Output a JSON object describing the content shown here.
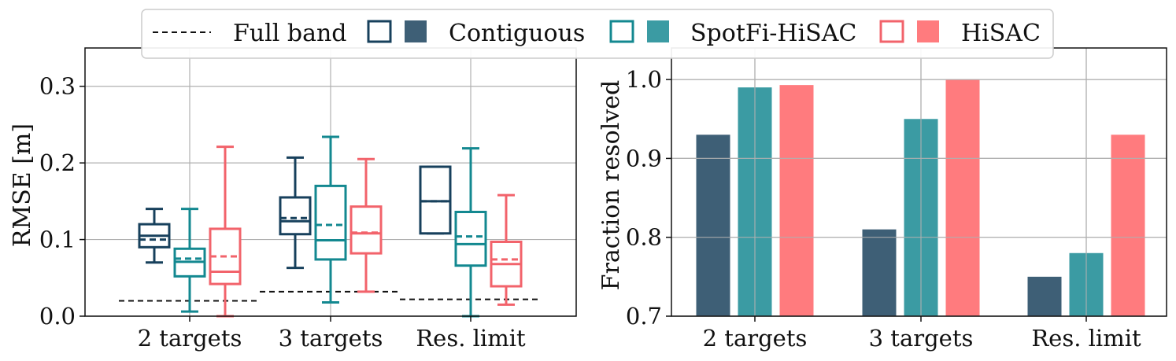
{
  "colors": {
    "contiguous": "#17405c",
    "spotfi": "#138890",
    "hisac": "#f2636b",
    "contiguous_fill": "#3e5f76",
    "spotfi_fill": "#3b9ba3",
    "hisac_fill": "#ff7b7e",
    "grid": "#b0b0b0"
  },
  "legend": {
    "full_band": "Full band",
    "contiguous": "Contiguous",
    "spotfi": "SpotFi-HiSAC",
    "hisac": "HiSAC"
  },
  "chart_data": [
    {
      "type": "box",
      "ylabel": "RMSE [m]",
      "ylim": [
        0.0,
        0.35
      ],
      "yticks": [
        "0.0",
        "0.1",
        "0.2",
        "0.3"
      ],
      "ytick_values": [
        0.0,
        0.1,
        0.2,
        0.3
      ],
      "categories": [
        "2 targets",
        "3 targets",
        "Res. limit"
      ],
      "grid": true,
      "series": [
        {
          "name": "Contiguous",
          "color_key": "contiguous",
          "boxes": [
            {
              "whislo": 0.07,
              "q1": 0.09,
              "med": 0.105,
              "mean": 0.1,
              "q3": 0.12,
              "whishi": 0.14
            },
            {
              "whislo": 0.063,
              "q1": 0.107,
              "med": 0.124,
              "mean": 0.128,
              "q3": 0.155,
              "whishi": 0.207
            },
            {
              "whislo": 0.108,
              "q1": 0.108,
              "med": 0.15,
              "mean": 0.15,
              "q3": 0.195,
              "whishi": 0.195
            }
          ]
        },
        {
          "name": "SpotFi-HiSAC",
          "color_key": "spotfi",
          "boxes": [
            {
              "whislo": 0.006,
              "q1": 0.052,
              "med": 0.071,
              "mean": 0.075,
              "q3": 0.088,
              "whishi": 0.14
            },
            {
              "whislo": 0.018,
              "q1": 0.074,
              "med": 0.099,
              "mean": 0.119,
              "q3": 0.17,
              "whishi": 0.234
            },
            {
              "whislo": 0.0,
              "q1": 0.066,
              "med": 0.094,
              "mean": 0.104,
              "q3": 0.136,
              "whishi": 0.219
            }
          ]
        },
        {
          "name": "HiSAC",
          "color_key": "hisac",
          "boxes": [
            {
              "whislo": 0.0,
              "q1": 0.042,
              "med": 0.058,
              "mean": 0.078,
              "q3": 0.114,
              "whishi": 0.221
            },
            {
              "whislo": 0.032,
              "q1": 0.082,
              "med": 0.108,
              "mean": 0.109,
              "q3": 0.143,
              "whishi": 0.205
            },
            {
              "whislo": 0.015,
              "q1": 0.039,
              "med": 0.068,
              "mean": 0.074,
              "q3": 0.097,
              "whishi": 0.158
            }
          ]
        }
      ],
      "full_band": [
        0.02,
        0.032,
        0.022
      ]
    },
    {
      "type": "bar",
      "ylabel": "Fraction resolved",
      "ylim": [
        0.7,
        1.04
      ],
      "yticks": [
        "0.7",
        "0.8",
        "0.9",
        "1.0"
      ],
      "ytick_values": [
        0.7,
        0.8,
        0.9,
        1.0
      ],
      "categories": [
        "2 targets",
        "3 targets",
        "Res. limit"
      ],
      "grid": true,
      "series": [
        {
          "name": "Contiguous",
          "color_key": "contiguous_fill",
          "values": [
            0.93,
            0.81,
            0.75
          ]
        },
        {
          "name": "SpotFi-HiSAC",
          "color_key": "spotfi_fill",
          "values": [
            0.99,
            0.95,
            0.78
          ]
        },
        {
          "name": "HiSAC",
          "color_key": "hisac_fill",
          "values": [
            0.993,
            1.0,
            0.93
          ]
        }
      ]
    }
  ]
}
